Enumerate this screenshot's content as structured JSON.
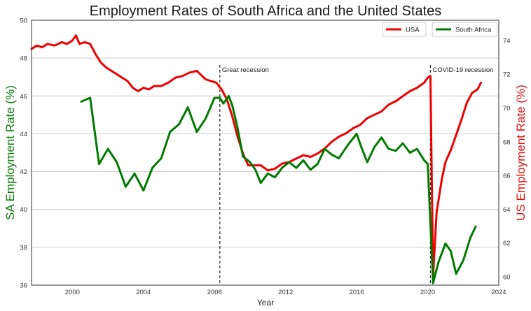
{
  "chart_data": {
    "type": "line",
    "title": "Employment Rates of South Africa and the United States",
    "xlabel": "Year",
    "ylabel_left": "SA Employment Rate (%)",
    "ylabel_right": "US Employment Rate (%)",
    "xlim": [
      1997.7,
      2024
    ],
    "ylim_left": [
      36,
      50
    ],
    "ylim_right": [
      59.5,
      75.2
    ],
    "x_ticks": [
      2000,
      2004,
      2008,
      2012,
      2016,
      2020,
      2024
    ],
    "y_ticks_left": [
      36,
      38,
      40,
      42,
      44,
      46,
      48,
      50
    ],
    "y_ticks_right": [
      60,
      62,
      64,
      66,
      68,
      70,
      72,
      74
    ],
    "grid": "horizontal",
    "legend_placement": "top-right",
    "colors": {
      "usa": "#ee0000",
      "sa": "#007a00",
      "left_axis_label": "#0a7a0a",
      "right_axis_label": "#e01010"
    },
    "series": [
      {
        "name": "USA",
        "axis": "right",
        "color": "#ee0000",
        "points": [
          [
            1997.7,
            73.5
          ],
          [
            1998.0,
            73.7
          ],
          [
            1998.3,
            73.6
          ],
          [
            1998.6,
            73.8
          ],
          [
            1999.0,
            73.7
          ],
          [
            1999.4,
            73.9
          ],
          [
            1999.7,
            73.8
          ],
          [
            2000.0,
            74.0
          ],
          [
            2000.2,
            74.3
          ],
          [
            2000.4,
            73.8
          ],
          [
            2000.7,
            73.9
          ],
          [
            2001.0,
            73.8
          ],
          [
            2001.3,
            73.2
          ],
          [
            2001.6,
            72.7
          ],
          [
            2001.9,
            72.4
          ],
          [
            2002.2,
            72.2
          ],
          [
            2002.5,
            72.0
          ],
          [
            2002.8,
            71.8
          ],
          [
            2003.1,
            71.6
          ],
          [
            2003.4,
            71.2
          ],
          [
            2003.7,
            71.0
          ],
          [
            2004.0,
            71.2
          ],
          [
            2004.3,
            71.1
          ],
          [
            2004.6,
            71.3
          ],
          [
            2005.0,
            71.3
          ],
          [
            2005.4,
            71.5
          ],
          [
            2005.8,
            71.8
          ],
          [
            2006.2,
            71.9
          ],
          [
            2006.6,
            72.1
          ],
          [
            2007.0,
            72.2
          ],
          [
            2007.2,
            72.0
          ],
          [
            2007.5,
            71.7
          ],
          [
            2007.8,
            71.6
          ],
          [
            2008.1,
            71.5
          ],
          [
            2008.4,
            71.1
          ],
          [
            2008.7,
            70.5
          ],
          [
            2009.0,
            69.5
          ],
          [
            2009.3,
            68.3
          ],
          [
            2009.6,
            67.3
          ],
          [
            2009.9,
            66.6
          ],
          [
            2010.2,
            66.6
          ],
          [
            2010.6,
            66.6
          ],
          [
            2011.0,
            66.3
          ],
          [
            2011.4,
            66.4
          ],
          [
            2011.8,
            66.7
          ],
          [
            2012.2,
            66.8
          ],
          [
            2012.6,
            67.0
          ],
          [
            2013.0,
            67.2
          ],
          [
            2013.4,
            67.1
          ],
          [
            2013.8,
            67.3
          ],
          [
            2014.2,
            67.6
          ],
          [
            2014.6,
            68.0
          ],
          [
            2015.0,
            68.3
          ],
          [
            2015.4,
            68.5
          ],
          [
            2015.8,
            68.8
          ],
          [
            2016.2,
            69.0
          ],
          [
            2016.6,
            69.4
          ],
          [
            2017.0,
            69.6
          ],
          [
            2017.4,
            69.8
          ],
          [
            2017.8,
            70.2
          ],
          [
            2018.2,
            70.4
          ],
          [
            2018.6,
            70.7
          ],
          [
            2019.0,
            71.0
          ],
          [
            2019.4,
            71.2
          ],
          [
            2019.8,
            71.5
          ],
          [
            2020.0,
            71.8
          ],
          [
            2020.15,
            71.9
          ],
          [
            2020.3,
            60.0
          ],
          [
            2020.5,
            63.8
          ],
          [
            2020.8,
            65.8
          ],
          [
            2021.0,
            66.8
          ],
          [
            2021.3,
            67.5
          ],
          [
            2021.6,
            68.4
          ],
          [
            2021.9,
            69.3
          ],
          [
            2022.2,
            70.3
          ],
          [
            2022.5,
            70.9
          ],
          [
            2022.8,
            71.1
          ],
          [
            2023.0,
            71.5
          ]
        ]
      },
      {
        "name": "South Africa",
        "axis": "left",
        "color": "#007a00",
        "points": [
          [
            2000.5,
            45.7
          ],
          [
            2001.0,
            45.9
          ],
          [
            2001.5,
            42.4
          ],
          [
            2002.0,
            43.2
          ],
          [
            2002.5,
            42.5
          ],
          [
            2003.0,
            41.2
          ],
          [
            2003.5,
            41.9
          ],
          [
            2004.0,
            41.0
          ],
          [
            2004.5,
            42.2
          ],
          [
            2005.0,
            42.7
          ],
          [
            2005.5,
            44.1
          ],
          [
            2006.0,
            44.5
          ],
          [
            2006.5,
            45.4
          ],
          [
            2007.0,
            44.1
          ],
          [
            2007.5,
            44.8
          ],
          [
            2008.0,
            45.9
          ],
          [
            2008.3,
            45.9
          ],
          [
            2008.5,
            45.6
          ],
          [
            2008.8,
            46.0
          ],
          [
            2009.0,
            45.5
          ],
          [
            2009.3,
            44.3
          ],
          [
            2009.6,
            42.8
          ],
          [
            2010.0,
            42.5
          ],
          [
            2010.3,
            42.1
          ],
          [
            2010.6,
            41.4
          ],
          [
            2011.0,
            41.9
          ],
          [
            2011.4,
            41.7
          ],
          [
            2011.8,
            42.2
          ],
          [
            2012.2,
            42.5
          ],
          [
            2012.6,
            42.2
          ],
          [
            2013.0,
            42.6
          ],
          [
            2013.4,
            42.1
          ],
          [
            2013.8,
            42.4
          ],
          [
            2014.2,
            43.2
          ],
          [
            2014.6,
            42.9
          ],
          [
            2015.0,
            42.7
          ],
          [
            2015.5,
            43.4
          ],
          [
            2016.0,
            44.0
          ],
          [
            2016.3,
            43.2
          ],
          [
            2016.6,
            42.5
          ],
          [
            2017.0,
            43.3
          ],
          [
            2017.4,
            43.8
          ],
          [
            2017.8,
            43.2
          ],
          [
            2018.2,
            43.1
          ],
          [
            2018.6,
            43.5
          ],
          [
            2019.0,
            43.0
          ],
          [
            2019.4,
            43.2
          ],
          [
            2019.8,
            42.6
          ],
          [
            2020.0,
            42.4
          ],
          [
            2020.3,
            36.1
          ],
          [
            2020.6,
            37.2
          ],
          [
            2021.0,
            38.2
          ],
          [
            2021.3,
            37.8
          ],
          [
            2021.6,
            36.6
          ],
          [
            2022.0,
            37.3
          ],
          [
            2022.4,
            38.5
          ],
          [
            2022.7,
            39.1
          ]
        ]
      }
    ],
    "annotations": [
      {
        "x": 2008.3,
        "label": "Great recession"
      },
      {
        "x": 2020.15,
        "label": "COVID-19 recession"
      }
    ]
  }
}
